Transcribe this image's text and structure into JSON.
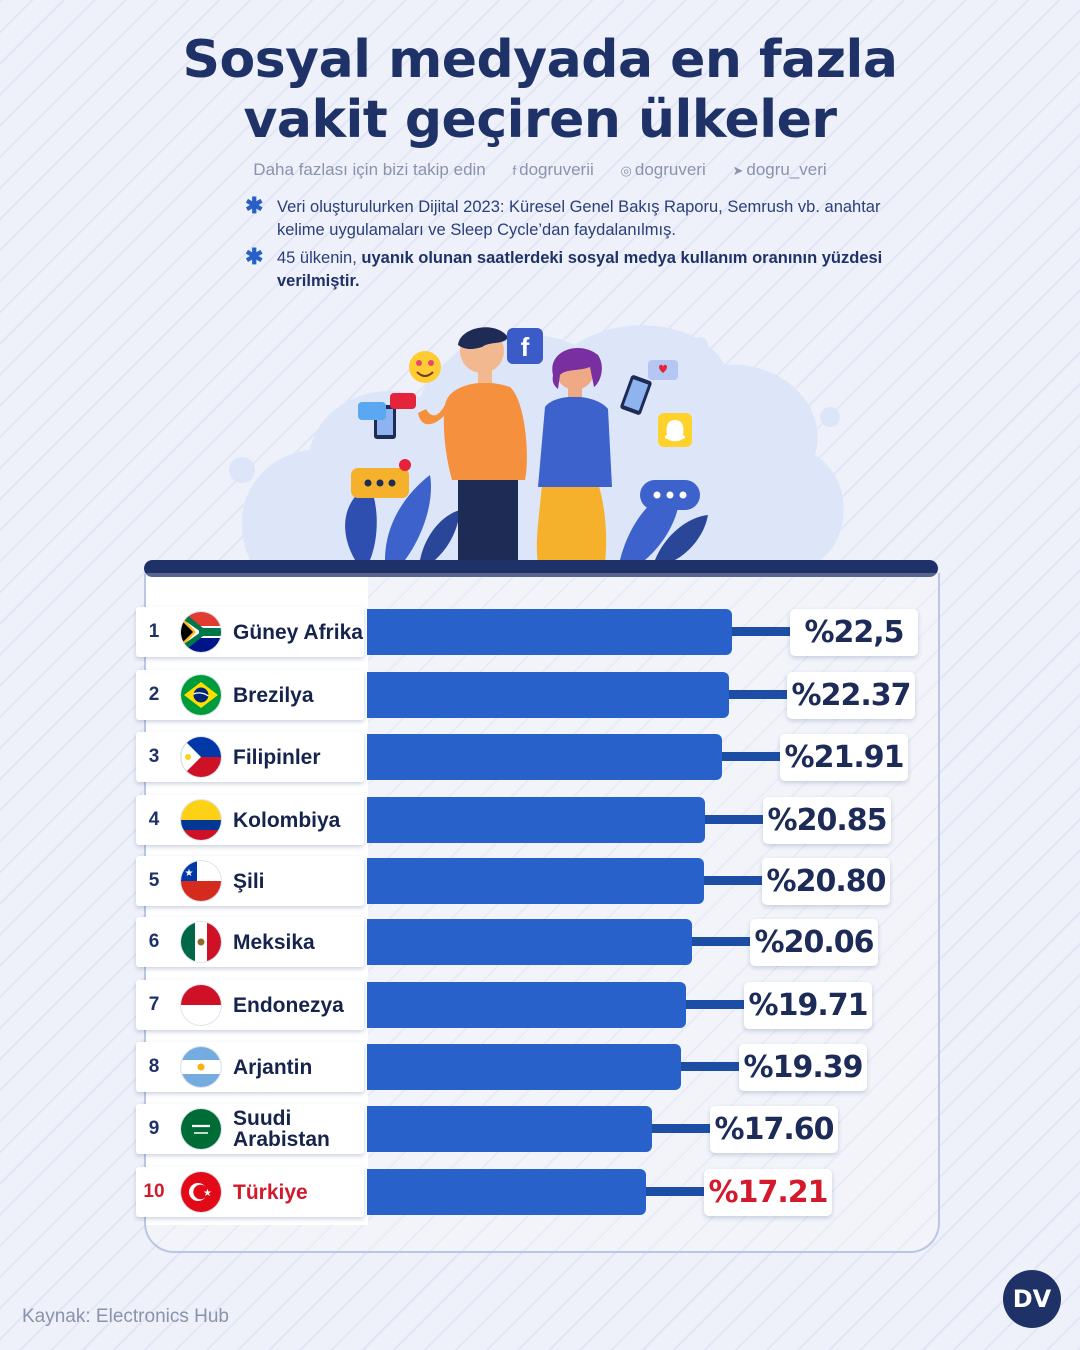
{
  "header": {
    "title_line1": "Sosyal medyada en fazla",
    "title_line2": "vakit geçiren ülkeler",
    "follow_text": "Daha fazlası için bizi takip edin",
    "facebook_handle": "dogruverii",
    "instagram_handle": "dogruveri",
    "twitter_handle": "dogru_veri"
  },
  "notes": {
    "note1": "Veri oluşturulurken Dijital 2023: Küresel Genel Bakış Raporu, Semrush vb. anahtar kelime uygulamaları ve Sleep Cycle’dan faydalanılmış.",
    "note2_prefix": "45 ülkenin, ",
    "note2_bold": "uyanık olunan saatlerdeki sosyal medya kullanım oranının yüzdesi verilmiştir."
  },
  "illustration": {
    "icons": [
      "facebook-icon",
      "snapchat-icon",
      "heart-eyes-emoji-icon",
      "chat-bubble-icon"
    ]
  },
  "chart_data": {
    "type": "bar",
    "orientation": "horizontal",
    "value_prefix": "%",
    "highlight_color": "#d21a2c",
    "bar_color": "#2761c9",
    "categories": [
      "Güney Afrika",
      "Brezilya",
      "Filipinler",
      "Kolombiya",
      "Şili",
      "Meksika",
      "Endonezya",
      "Arjantin",
      "Suudi Arabistan",
      "Türkiye"
    ],
    "values": [
      22.5,
      22.37,
      21.91,
      20.85,
      20.8,
      20.06,
      19.71,
      19.39,
      17.6,
      17.21
    ],
    "rows": [
      {
        "rank": "1",
        "country": "Güney Afrika",
        "value": 22.5,
        "label": "%22,5",
        "flag": "south-africa-flag-icon"
      },
      {
        "rank": "2",
        "country": "Brezilya",
        "value": 22.37,
        "label": "%22.37",
        "flag": "brazil-flag-icon"
      },
      {
        "rank": "3",
        "country": "Filipinler",
        "value": 21.91,
        "label": "%21.91",
        "flag": "philippines-flag-icon"
      },
      {
        "rank": "4",
        "country": "Kolombiya",
        "value": 20.85,
        "label": "%20.85",
        "flag": "colombia-flag-icon"
      },
      {
        "rank": "5",
        "country": "Şili",
        "value": 20.8,
        "label": "%20.80",
        "flag": "chile-flag-icon"
      },
      {
        "rank": "6",
        "country": "Meksika",
        "value": 20.06,
        "label": "%20.06",
        "flag": "mexico-flag-icon"
      },
      {
        "rank": "7",
        "country": "Endonezya",
        "value": 19.71,
        "label": "%19.71",
        "flag": "indonesia-flag-icon"
      },
      {
        "rank": "8",
        "country": "Arjantin",
        "value": 19.39,
        "label": "%19.39",
        "flag": "argentina-flag-icon"
      },
      {
        "rank": "9",
        "country": "Suudi Arabistan",
        "value": 17.6,
        "label": "%17.60",
        "flag": "saudi-arabia-flag-icon"
      },
      {
        "rank": "10",
        "country": "Türkiye",
        "value": 17.21,
        "label": "%17.21",
        "flag": "turkey-flag-icon",
        "highlight": true
      }
    ]
  },
  "footer": {
    "source": "Kaynak: Electronics Hub",
    "logo_text": "DV"
  }
}
